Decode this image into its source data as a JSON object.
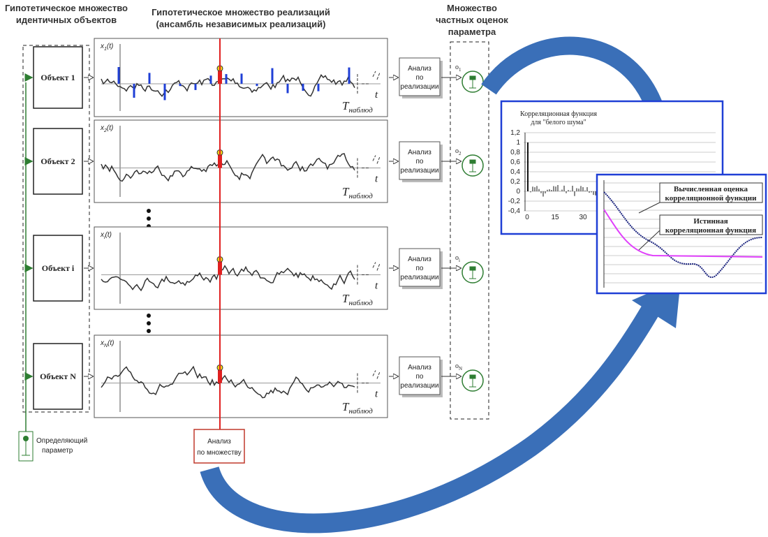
{
  "header": {
    "objects_title": [
      "Гипотетическое множество",
      "идентичных  объектов"
    ],
    "realizations_title": [
      "Гипотетическое множество  реализаций",
      "(ансамбль независимых реализаций)"
    ],
    "estimates_title": [
      "Множество",
      "частных оценок",
      "параметра"
    ]
  },
  "rows": [
    {
      "object": "Объект 1",
      "signal": {
        "symbol": "x",
        "index": "1",
        "arg": "(t)"
      },
      "time_label": {
        "symbol": "T",
        "subscript": "наблюд"
      },
      "axis_label": "t",
      "analysis": [
        "Анализ",
        "по",
        "реализации"
      ],
      "estimate": {
        "symbol": "o",
        "index": "1"
      }
    },
    {
      "object": "Объект 2",
      "signal": {
        "symbol": "x",
        "index": "2",
        "arg": "(t)"
      },
      "time_label": {
        "symbol": "T",
        "subscript": "наблюд"
      },
      "axis_label": "t",
      "analysis": [
        "Анализ",
        "по",
        "реализации"
      ],
      "estimate": {
        "symbol": "o",
        "index": "2"
      }
    },
    {
      "object": "Объект  i",
      "signal": {
        "symbol": "x",
        "index": "i",
        "arg": "(t)"
      },
      "time_label": {
        "symbol": "T",
        "subscript": "наблюд"
      },
      "axis_label": "t",
      "analysis": [
        "Анализ",
        "по",
        "реализации"
      ],
      "estimate": {
        "symbol": "o",
        "index": "i"
      }
    },
    {
      "object": "Объект  N",
      "signal": {
        "symbol": "x",
        "index": "N",
        "arg": "(t)"
      },
      "time_label": {
        "symbol": "T",
        "subscript": "наблюд"
      },
      "axis_label": "t",
      "analysis": [
        "Анализ",
        "по",
        "реализации"
      ],
      "estimate": {
        "symbol": "o",
        "index": "N"
      }
    }
  ],
  "parameter": [
    "Определяющий",
    "параметр"
  ],
  "ensemble_analysis": [
    "Анализ",
    "по множеству"
  ],
  "inset_white_noise": {
    "title": [
      "Корреляционная функция",
      "для \"белого шума\""
    ],
    "yticks": [
      "1,2",
      "1",
      "0,8",
      "0,6",
      "0,4",
      "0,2",
      "0",
      "-0,2",
      "-0,4"
    ],
    "xticks": [
      "0",
      "15",
      "30"
    ]
  },
  "inset_correlation": {
    "estimate_label": [
      "Вычисленная оценка",
      "корреляционной функции"
    ],
    "true_label": [
      "Истинная",
      "корреляционная функция"
    ]
  }
}
